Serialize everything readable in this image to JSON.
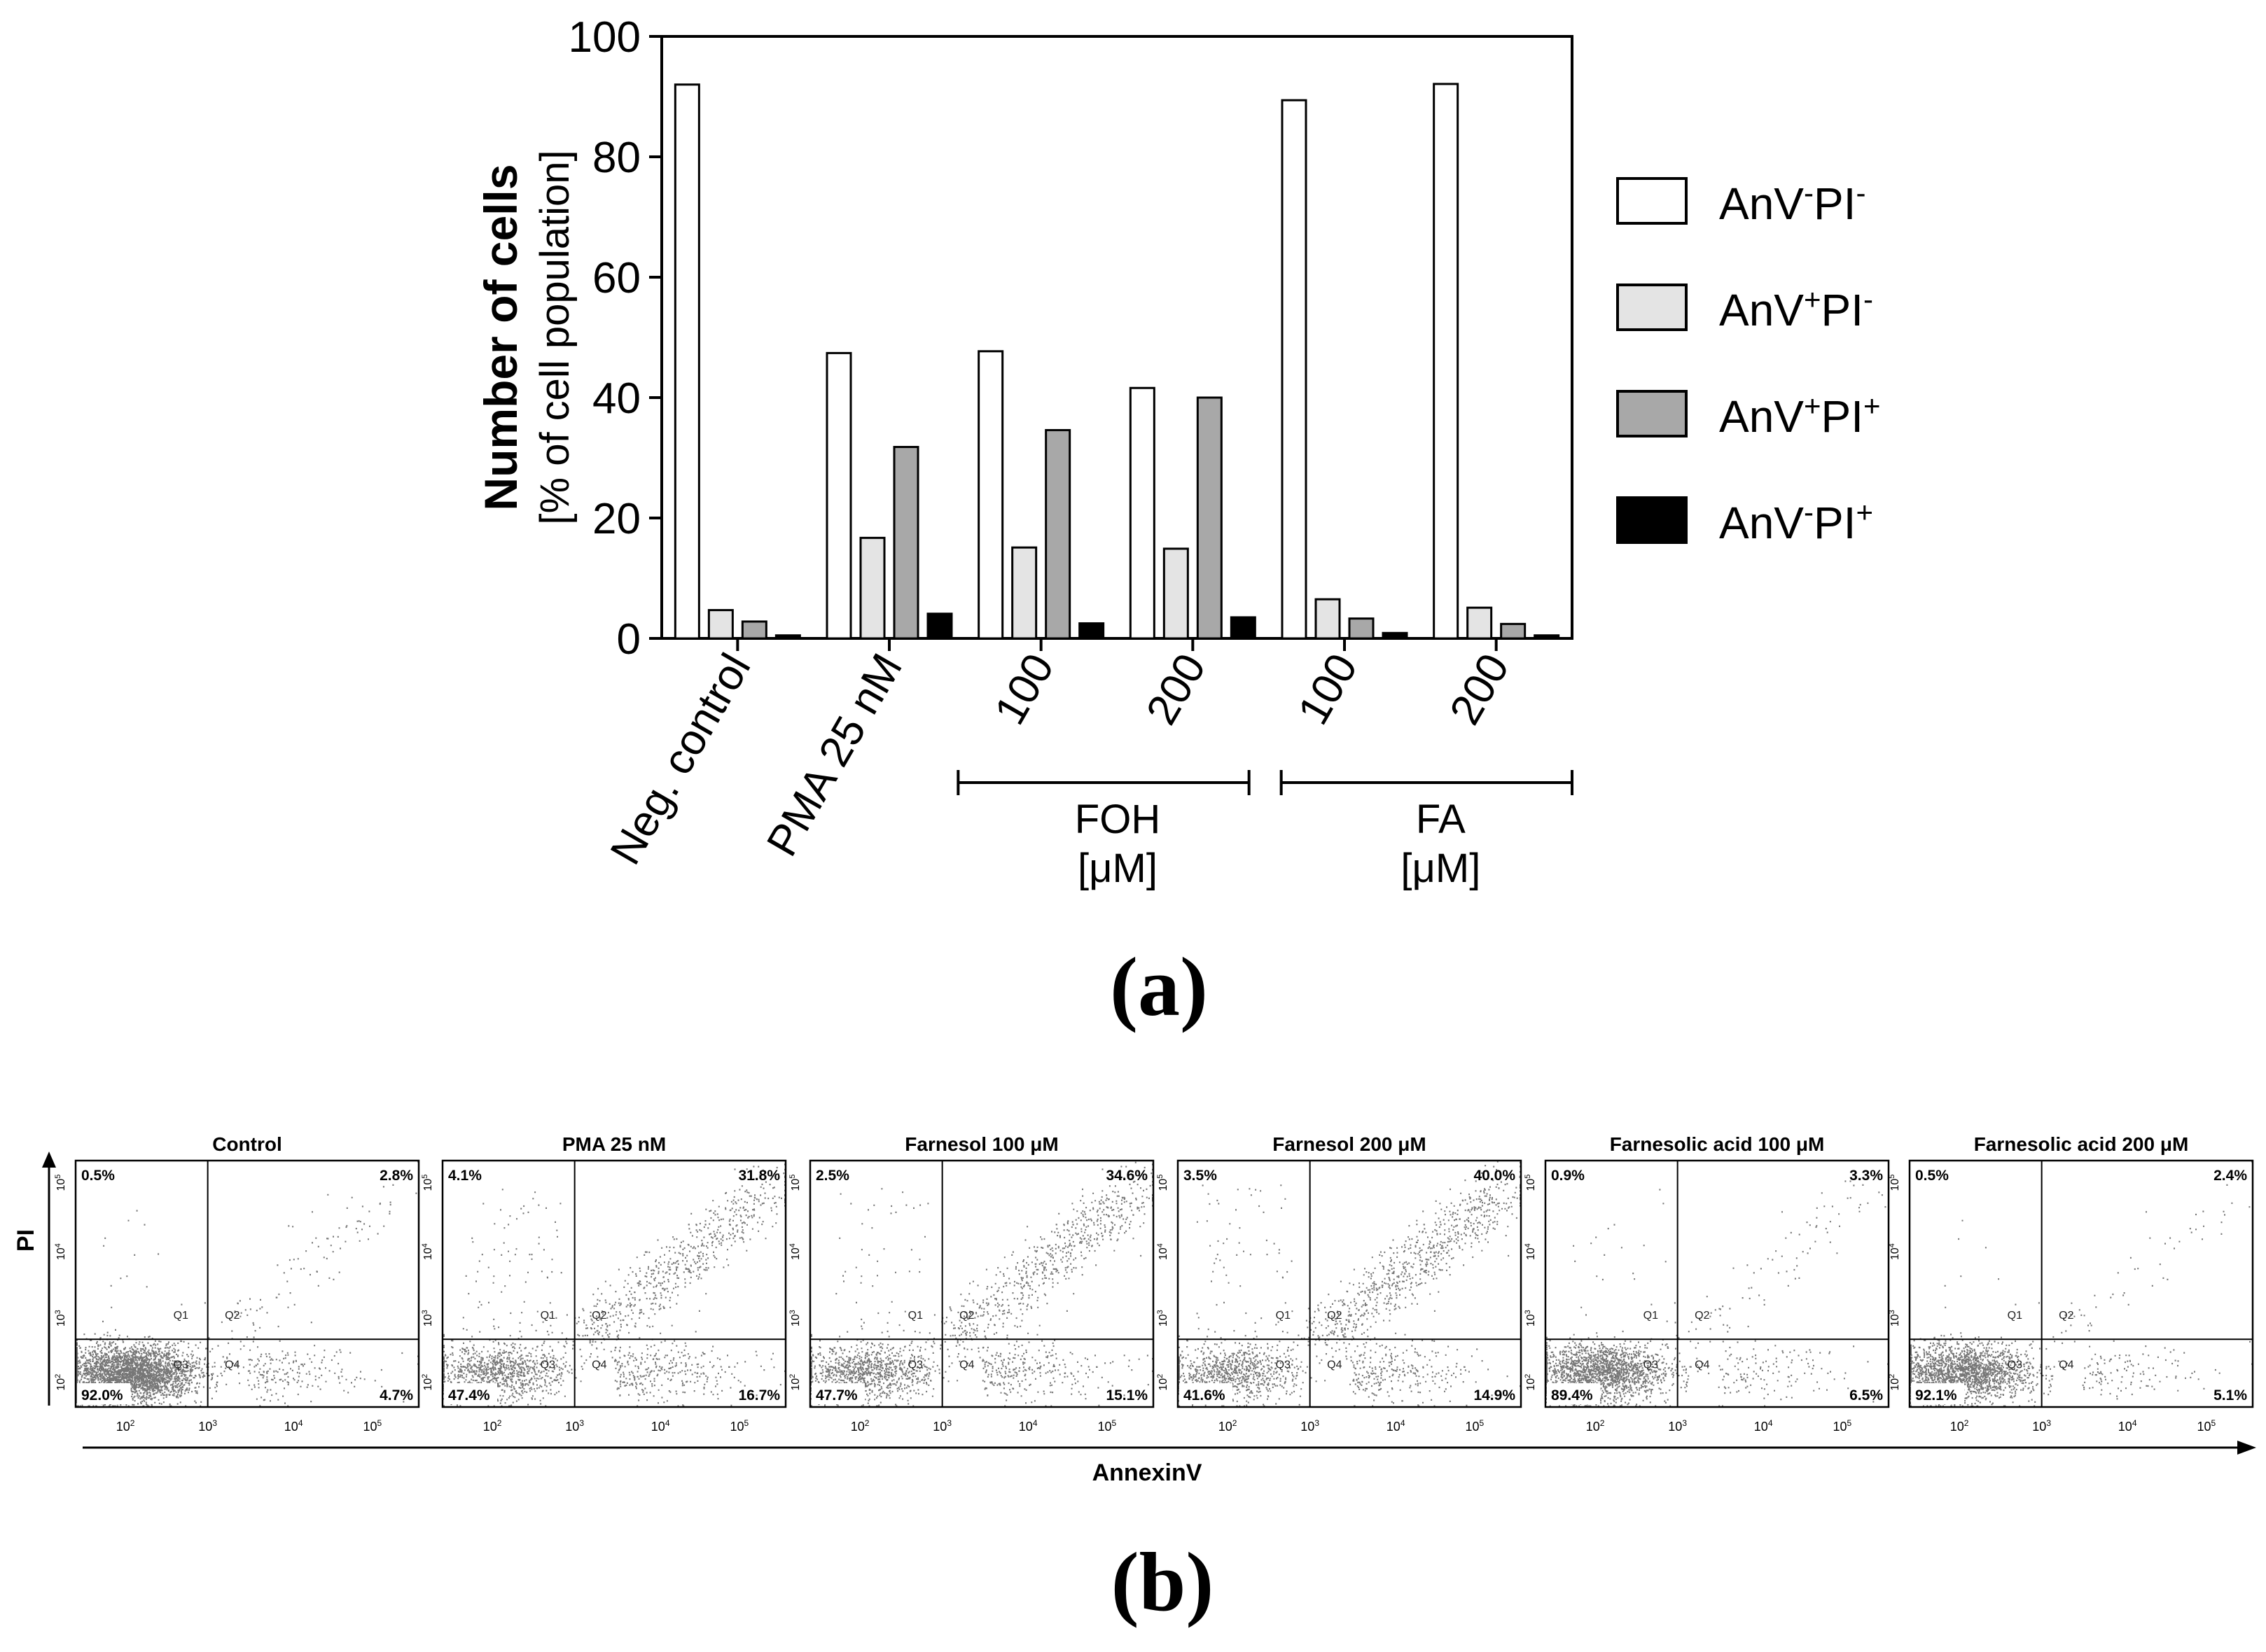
{
  "chart_data": [
    {
      "type": "bar",
      "ylabel_bold": "Number of cells",
      "ylabel": "[% of cell population]",
      "ylim": [
        0,
        100
      ],
      "yticks": [
        "0",
        "20",
        "40",
        "60",
        "80",
        "100"
      ],
      "categories": [
        "Neg. control",
        "PMA 25 nM",
        "100",
        "200",
        "100",
        "200"
      ],
      "groups": [
        {
          "label": "FOH",
          "unit": "[μM]"
        },
        {
          "label": "FA",
          "unit": "[μM]"
        }
      ],
      "series": [
        {
          "name": "AnV-PI-",
          "base": "AnV",
          "sup1": "-",
          "mid": "PI",
          "sup2": "-",
          "color": "#ffffff",
          "values": [
            92.0,
            47.4,
            47.7,
            41.6,
            89.4,
            92.1
          ]
        },
        {
          "name": "AnV+PI-",
          "base": "AnV",
          "sup1": "+",
          "mid": "PI",
          "sup2": "-",
          "color": "#e4e4e4",
          "values": [
            4.7,
            16.7,
            15.1,
            14.9,
            6.5,
            5.1
          ]
        },
        {
          "name": "AnV+PI+",
          "base": "AnV",
          "sup1": "+",
          "mid": "PI",
          "sup2": "+",
          "color": "#a8a8a8",
          "values": [
            2.8,
            31.8,
            34.6,
            40.0,
            3.3,
            2.4
          ]
        },
        {
          "name": "AnV-PI+",
          "base": "AnV",
          "sup1": "-",
          "mid": "PI",
          "sup2": "+",
          "color": "#000000",
          "values": [
            0.5,
            4.1,
            2.5,
            3.5,
            0.9,
            0.5
          ]
        }
      ],
      "legend_position": "right",
      "panel_label": "(a)"
    },
    {
      "type": "scatter",
      "xlabel": "AnnexinV",
      "ylabel": "PI",
      "panel_label": "(b)",
      "x_ticks": [
        "10",
        "10",
        "10",
        "10"
      ],
      "x_tick_exps": [
        "2",
        "3",
        "4",
        "5"
      ],
      "y_ticks": [
        "10",
        "10",
        "10",
        "10"
      ],
      "y_tick_exps": [
        "2",
        "3",
        "4",
        "5"
      ],
      "quadrant_labels": [
        "Q1",
        "Q2",
        "Q3",
        "Q4"
      ],
      "panels": [
        {
          "title": "Control",
          "q_ul": "0.5%",
          "q_ur": "2.8%",
          "q_ll": "92.0%",
          "q_lr": "4.7%"
        },
        {
          "title": "PMA 25 nM",
          "q_ul": "4.1%",
          "q_ur": "31.8%",
          "q_ll": "47.4%",
          "q_lr": "16.7%"
        },
        {
          "title": "Farnesol 100 μM",
          "q_ul": "2.5%",
          "q_ur": "34.6%",
          "q_ll": "47.7%",
          "q_lr": "15.1%"
        },
        {
          "title": "Farnesol 200 μM",
          "q_ul": "3.5%",
          "q_ur": "40.0%",
          "q_ll": "41.6%",
          "q_lr": "14.9%"
        },
        {
          "title": "Farnesolic acid 100 μM",
          "q_ul": "0.9%",
          "q_ur": "3.3%",
          "q_ll": "89.4%",
          "q_lr": "6.5%"
        },
        {
          "title": "Farnesolic acid 200 μM",
          "q_ul": "0.5%",
          "q_ur": "2.4%",
          "q_ll": "92.1%",
          "q_lr": "5.1%"
        }
      ]
    }
  ]
}
